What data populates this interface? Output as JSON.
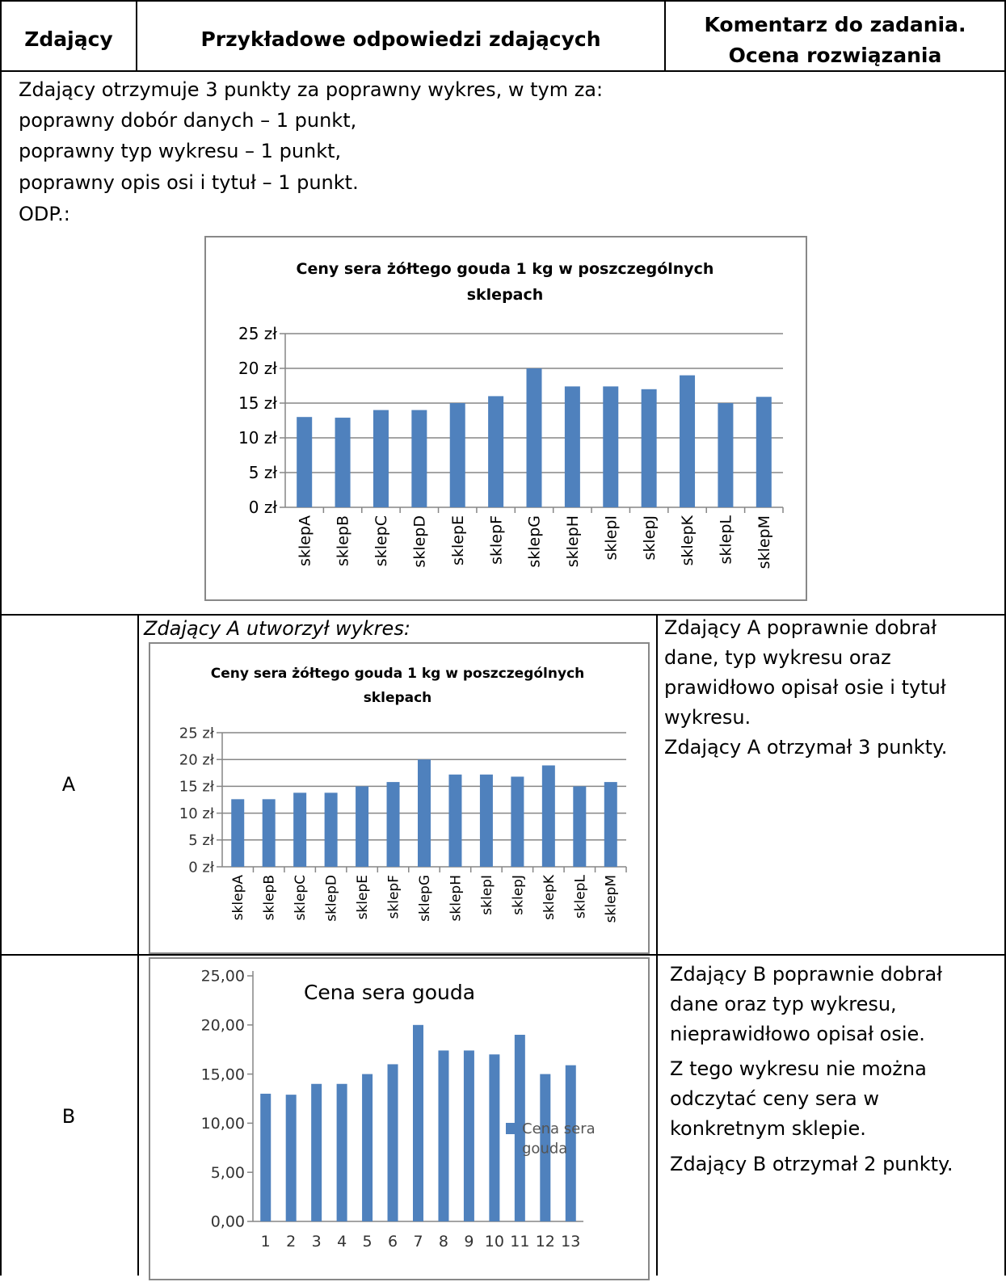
{
  "header": {
    "col1": "Zdający",
    "col2": "Przykładowe odpowiedzi zdających",
    "col3_line1": "Komentarz do zadania.",
    "col3_line2": "Ocena rozwiązania"
  },
  "intro": {
    "lines": [
      "Zdający otrzymuje 3 punkty za poprawny wykres, w tym za:",
      "poprawny dobór danych – 1 punkt,",
      "poprawny typ wykresu – 1 punkt,",
      "poprawny opis osi i tytuł – 1 punkt.",
      "ODP.:"
    ]
  },
  "rowA": {
    "label": "A",
    "caption": "Zdający A utworzył wykres:",
    "comment": [
      "Zdający A poprawnie dobrał",
      "dane, typ wykresu oraz",
      "prawidłowo opisał osie i tytuł",
      "wykresu.",
      "Zdający A otrzymał 3 punkty."
    ]
  },
  "rowB": {
    "label": "B",
    "comment": [
      "Zdający B poprawnie dobrał",
      "dane oraz typ wykresu,",
      "nieprawidłowo opisał osie.",
      "Z tego wykresu nie można",
      "odczytać ceny sera w",
      "konkretnym sklepie.",
      "Zdający B otrzymał 2 punkty."
    ]
  },
  "colors": {
    "bar": "#4f81bd",
    "grid": "#868686",
    "frame": "#888888"
  },
  "chart_data": [
    {
      "id": "odp",
      "type": "bar",
      "title_lines": [
        "Ceny sera żółtego gouda 1 kg w poszczególnych",
        "sklepach"
      ],
      "categories": [
        "sklepA",
        "sklepB",
        "sklepC",
        "sklepD",
        "sklepE",
        "sklepF",
        "sklepG",
        "sklepH",
        "sklepI",
        "sklepJ",
        "sklepK",
        "sklepL",
        "sklepM"
      ],
      "values": [
        13,
        12.9,
        14,
        14,
        15,
        16,
        20,
        17.4,
        17.4,
        17,
        19,
        15,
        15.9
      ],
      "yticks": [
        "0 zł",
        "5 zł",
        "10 zł",
        "15 zł",
        "20 zł",
        "25 zł"
      ],
      "ylim": [
        0,
        25
      ],
      "grid": true
    },
    {
      "id": "a",
      "type": "bar",
      "title_lines": [
        "Ceny sera żółtego gouda 1 kg w poszczególnych",
        "sklepach"
      ],
      "categories": [
        "sklepA",
        "sklepB",
        "sklepC",
        "sklepD",
        "sklepE",
        "sklepF",
        "sklepG",
        "sklepH",
        "sklepI",
        "sklepJ",
        "sklepK",
        "sklepL",
        "sklepM"
      ],
      "values": [
        12.6,
        12.6,
        13.8,
        13.8,
        15,
        15.8,
        20,
        17.2,
        17.2,
        16.8,
        18.9,
        15,
        15.8
      ],
      "yticks": [
        "0 zł",
        "5 zł",
        "10 zł",
        "15 zł",
        "20 zł",
        "25 zł"
      ],
      "ylim": [
        0,
        25
      ],
      "grid": true
    },
    {
      "id": "b",
      "type": "bar",
      "title": "Cena sera gouda",
      "categories": [
        "1",
        "2",
        "3",
        "4",
        "5",
        "6",
        "7",
        "8",
        "9",
        "10",
        "11",
        "12",
        "13"
      ],
      "values": [
        13,
        12.9,
        14,
        14,
        15,
        16,
        20,
        17.4,
        17.4,
        17,
        19,
        15,
        15.9
      ],
      "yticks": [
        "0,00",
        "5,00",
        "10,00",
        "15,00",
        "20,00",
        "25,00"
      ],
      "ylim": [
        0,
        25
      ],
      "grid": false,
      "legend": {
        "line1": "Cena sera",
        "line2": "gouda",
        "placement": "right"
      }
    }
  ]
}
